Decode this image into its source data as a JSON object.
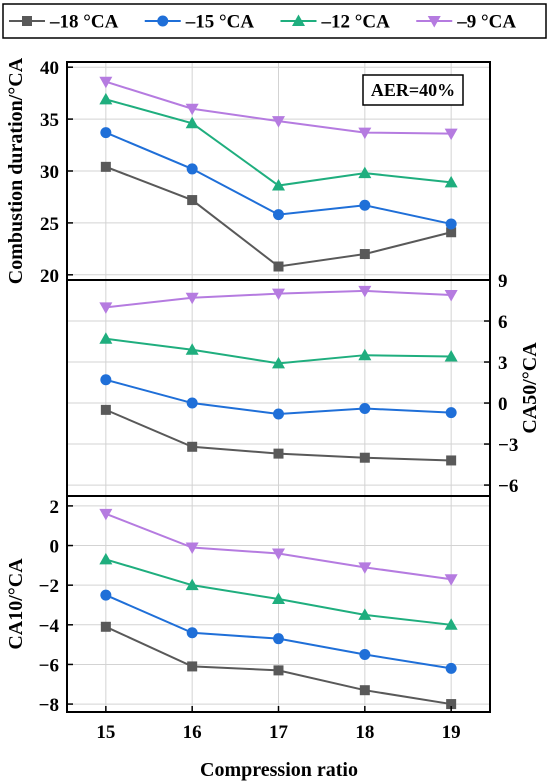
{
  "chart_data": {
    "type": "line",
    "x": [
      15,
      16,
      17,
      18,
      19
    ],
    "xlabel": "Compression ratio",
    "legend": {
      "placement": "top",
      "entries": [
        {
          "name": "–18 °CA",
          "color": "#595959",
          "marker": "square"
        },
        {
          "name": "–15 °CA",
          "color": "#1f6fd8",
          "marker": "circle"
        },
        {
          "name": "–12 °CA",
          "color": "#1fae7e",
          "marker": "triangle-up"
        },
        {
          "name": "–9 °CA",
          "color": "#b57be0",
          "marker": "triangle-down"
        }
      ]
    },
    "grid": true,
    "panels": [
      {
        "id": "combustion-duration",
        "ylabel": "Combustion duration/°CA",
        "y_axis_side": "left",
        "ylim": [
          19.5,
          40.5
        ],
        "yticks": [
          20,
          25,
          30,
          35,
          40
        ],
        "annotation": "AER=40%",
        "series": [
          {
            "name": "–18 °CA",
            "values": [
              30.4,
              27.2,
              20.8,
              22.0,
              24.1
            ]
          },
          {
            "name": "–15 °CA",
            "values": [
              33.7,
              30.2,
              25.8,
              26.7,
              24.9
            ]
          },
          {
            "name": "–12 °CA",
            "values": [
              36.9,
              34.6,
              28.6,
              29.8,
              28.9
            ]
          },
          {
            "name": "–9 °CA",
            "values": [
              38.6,
              36.0,
              34.8,
              33.7,
              33.6
            ]
          }
        ]
      },
      {
        "id": "ca50",
        "ylabel": "CA50/°CA",
        "y_axis_side": "right",
        "ylim": [
          -6.8,
          9.0
        ],
        "yticks": [
          -6,
          -3,
          0,
          3,
          6,
          9
        ],
        "series": [
          {
            "name": "–18 °CA",
            "values": [
              -0.5,
              -3.2,
              -3.7,
              -4.0,
              -4.2
            ]
          },
          {
            "name": "–15 °CA",
            "values": [
              1.7,
              0.0,
              -0.8,
              -0.4,
              -0.7
            ]
          },
          {
            "name": "–12 °CA",
            "values": [
              4.7,
              3.9,
              2.9,
              3.5,
              3.4
            ]
          },
          {
            "name": "–9 °CA",
            "values": [
              7.0,
              7.7,
              8.0,
              8.2,
              7.9
            ]
          }
        ]
      },
      {
        "id": "ca10",
        "ylabel": "CA10/°CA",
        "y_axis_side": "left",
        "ylim": [
          -8.4,
          2.5
        ],
        "yticks": [
          -8,
          -6,
          -4,
          -2,
          0,
          2
        ],
        "series": [
          {
            "name": "–18 °CA",
            "values": [
              -4.1,
              -6.1,
              -6.3,
              -7.3,
              -8.0
            ]
          },
          {
            "name": "–15 °CA",
            "values": [
              -2.5,
              -4.4,
              -4.7,
              -5.5,
              -6.2
            ]
          },
          {
            "name": "–12 °CA",
            "values": [
              -0.7,
              -2.0,
              -2.7,
              -3.5,
              -4.0
            ]
          },
          {
            "name": "–9 °CA",
            "values": [
              1.6,
              -0.1,
              -0.4,
              -1.1,
              -1.7
            ]
          }
        ]
      }
    ]
  }
}
